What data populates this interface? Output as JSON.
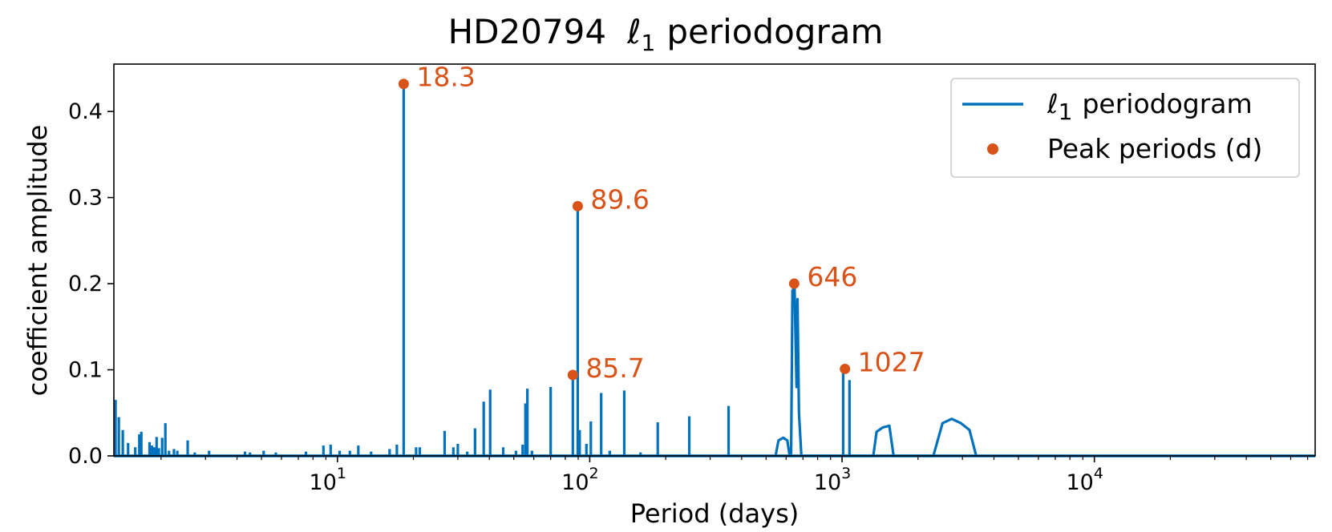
{
  "colors": {
    "series": "#0072bd",
    "peaks": "#d95319",
    "label_halo": "#ffffff"
  },
  "chart_data": {
    "type": "line",
    "title": {
      "main": "HD20794",
      "ell": "ℓ",
      "sub": "1",
      "rest": "periodogram"
    },
    "xlabel": "Period (days)",
    "ylabel": "coefficient amplitude",
    "xscale": "log",
    "xlim": [
      1.3,
      75000
    ],
    "ylim": [
      0,
      0.455
    ],
    "yticks": [
      {
        "value": 0.0,
        "label": "0.0"
      },
      {
        "value": 0.1,
        "label": "0.1"
      },
      {
        "value": 0.2,
        "label": "0.2"
      },
      {
        "value": 0.3,
        "label": "0.3"
      },
      {
        "value": 0.4,
        "label": "0.4"
      }
    ],
    "xticks": [
      {
        "value": 10,
        "base": "10",
        "exp": "1"
      },
      {
        "value": 100,
        "base": "10",
        "exp": "2"
      },
      {
        "value": 1000,
        "base": "10",
        "exp": "3"
      },
      {
        "value": 10000,
        "base": "10",
        "exp": "4"
      }
    ],
    "grid": false,
    "legend_position": "top-right",
    "legend": [
      {
        "kind": "line",
        "ell": "ℓ",
        "sub": "1",
        "text": "periodogram"
      },
      {
        "kind": "marker",
        "text": "Peak periods (d)"
      }
    ],
    "series": [
      {
        "kind": "spikes",
        "points": [
          [
            1.32,
            0.065
          ],
          [
            1.36,
            0.045
          ],
          [
            1.41,
            0.03
          ],
          [
            1.48,
            0.015
          ],
          [
            1.58,
            0.01
          ],
          [
            1.64,
            0.025
          ],
          [
            1.67,
            0.028
          ],
          [
            1.8,
            0.016
          ],
          [
            1.84,
            0.012
          ],
          [
            1.88,
            0.01
          ],
          [
            1.92,
            0.022
          ],
          [
            1.96,
            0.009
          ],
          [
            2.02,
            0.021
          ],
          [
            2.08,
            0.038
          ],
          [
            2.15,
            0.006
          ],
          [
            2.25,
            0.008
          ],
          [
            2.32,
            0.006
          ],
          [
            2.55,
            0.018
          ],
          [
            2.72,
            0.004
          ],
          [
            3.1,
            0.006
          ],
          [
            4.3,
            0.005
          ],
          [
            4.5,
            0.004
          ],
          [
            5.1,
            0.006
          ],
          [
            5.7,
            0.004
          ],
          [
            7.5,
            0.005
          ],
          [
            8.8,
            0.012
          ],
          [
            9.4,
            0.013
          ],
          [
            10.2,
            0.006
          ],
          [
            11.2,
            0.006
          ],
          [
            12.1,
            0.012
          ],
          [
            13.6,
            0.005
          ],
          [
            16.1,
            0.008
          ],
          [
            17.2,
            0.013
          ],
          [
            18.3,
            0.43
          ],
          [
            20.5,
            0.01
          ],
          [
            21.2,
            0.01
          ],
          [
            26.6,
            0.029
          ],
          [
            28.8,
            0.01
          ],
          [
            30.0,
            0.014
          ],
          [
            32.7,
            0.005
          ],
          [
            35.1,
            0.032
          ],
          [
            38.0,
            0.063
          ],
          [
            40.3,
            0.077
          ],
          [
            45.4,
            0.01
          ],
          [
            51.0,
            0.006
          ],
          [
            54.2,
            0.013
          ],
          [
            55.6,
            0.061
          ],
          [
            56.6,
            0.078
          ],
          [
            59.0,
            0.006
          ],
          [
            70.0,
            0.08
          ],
          [
            85.7,
            0.094
          ],
          [
            89.6,
            0.288
          ],
          [
            91.2,
            0.03
          ],
          [
            97.0,
            0.014
          ],
          [
            101.0,
            0.04
          ],
          [
            111.0,
            0.073
          ],
          [
            120.0,
            0.006
          ],
          [
            137.0,
            0.076
          ],
          [
            159.0,
            0.004
          ],
          [
            186.0,
            0.039
          ],
          [
            248.0,
            0.046
          ],
          [
            355.0,
            0.058
          ],
          [
            1010.0,
            0.096
          ],
          [
            1070.0,
            0.088
          ]
        ]
      },
      {
        "kind": "curve",
        "points": [
          [
            545,
            0
          ],
          [
            560,
            0.018
          ],
          [
            585,
            0.021
          ],
          [
            607,
            0.018
          ],
          [
            620,
            0
          ],
          [
            628,
            0
          ],
          [
            636,
            0.192
          ],
          [
            648,
            0.196
          ],
          [
            660,
            0.08
          ],
          [
            666,
            0.182
          ],
          [
            675,
            0.05
          ],
          [
            690,
            0
          ],
          [
            1330,
            0
          ],
          [
            1370,
            0.028
          ],
          [
            1450,
            0.033
          ],
          [
            1540,
            0.035
          ],
          [
            1600,
            0
          ],
          [
            2300,
            0
          ],
          [
            2500,
            0.038
          ],
          [
            2720,
            0.043
          ],
          [
            2960,
            0.038
          ],
          [
            3200,
            0.03
          ],
          [
            3400,
            0
          ]
        ]
      }
    ],
    "peaks": [
      {
        "x": 18.3,
        "y": 0.432,
        "label": "18.3"
      },
      {
        "x": 89.6,
        "y": 0.29,
        "label": "89.6"
      },
      {
        "x": 646,
        "y": 0.2,
        "label": "646"
      },
      {
        "x": 85.7,
        "y": 0.094,
        "label": "85.7"
      },
      {
        "x": 1027,
        "y": 0.101,
        "label": "1027"
      }
    ]
  }
}
